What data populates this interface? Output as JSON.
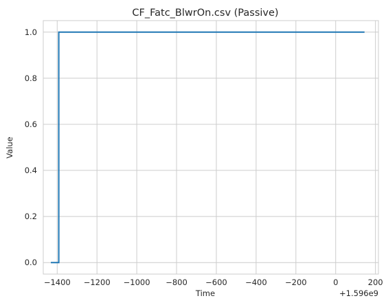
{
  "chart_data": {
    "type": "line",
    "title": "CF_Fatc_BlwrOn.csv (Passive)",
    "xlabel": "Time",
    "ylabel": "Value",
    "x_offset_label": "+1.596e9",
    "xlim": [
      -1470,
      215
    ],
    "ylim": [
      -0.05,
      1.05
    ],
    "xticks": [
      -1400,
      -1200,
      -1000,
      -800,
      -600,
      -400,
      -200,
      0,
      200
    ],
    "xtick_labels": [
      "−1400",
      "−1200",
      "−1000",
      "−800",
      "−600",
      "−400",
      "−200",
      "0",
      "200"
    ],
    "yticks": [
      0.0,
      0.2,
      0.4,
      0.6,
      0.8,
      1.0
    ],
    "ytick_labels": [
      "0.0",
      "0.2",
      "0.4",
      "0.6",
      "0.8",
      "1.0"
    ],
    "grid": true,
    "series": [
      {
        "color": "#1f77b4",
        "x": [
          -1432,
          -1392,
          -1392,
          145
        ],
        "y": [
          0,
          0,
          1,
          1
        ]
      }
    ]
  }
}
